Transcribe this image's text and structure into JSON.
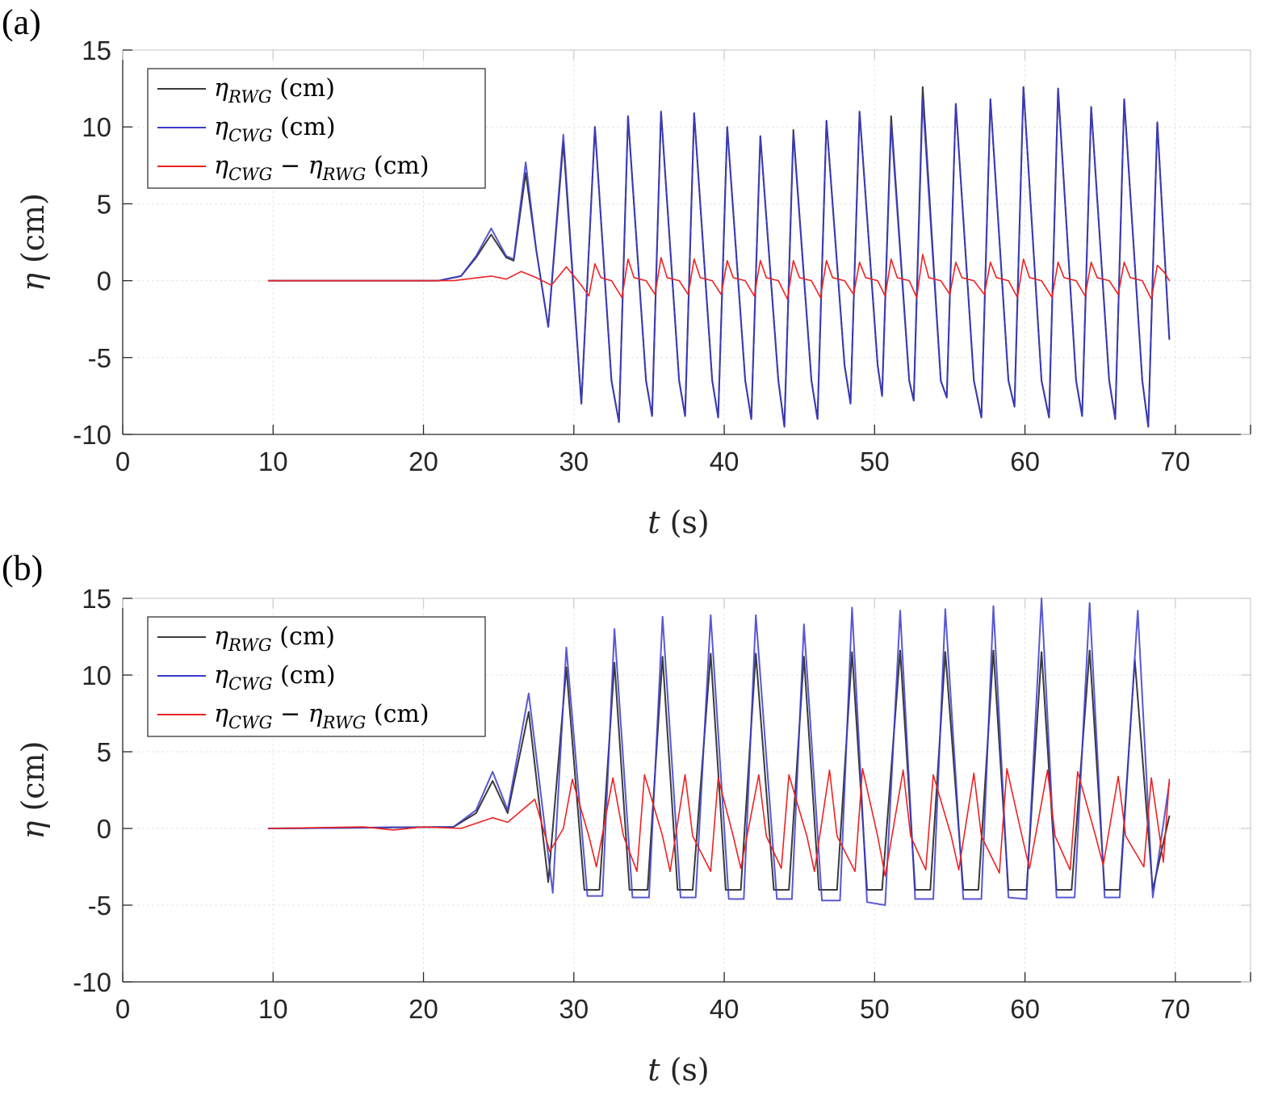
{
  "chart_data": [
    {
      "panel_label": "(a)",
      "type": "line",
      "xlabel_var": "t",
      "xlabel_unit": "(s)",
      "ylabel_var": "η",
      "ylabel_unit": "(cm)",
      "xlim": [
        0,
        75
      ],
      "ylim": [
        -10,
        15
      ],
      "xticks": [
        0,
        10,
        20,
        30,
        40,
        50,
        60,
        70
      ],
      "yticks": [
        15,
        10,
        5,
        0,
        -5,
        -10
      ],
      "xtick_labels": [
        "0",
        "10",
        "20",
        "30",
        "40",
        "50",
        "60",
        "70"
      ],
      "ytick_labels": [
        "15",
        "10",
        "5",
        "0",
        "-5",
        "-10"
      ],
      "grid": true,
      "legend_position": "top-left",
      "legend": [
        {
          "pre": "η",
          "sub": "RWG",
          "mid": "",
          "sub2": "",
          "unit": " (cm)"
        },
        {
          "pre": "η",
          "sub": "CWG",
          "mid": "",
          "sub2": "",
          "unit": " (cm)"
        },
        {
          "pre": "η",
          "sub": "CWG",
          "mid": " − η",
          "sub2": "RWG",
          "unit": " (cm)"
        }
      ],
      "wave_period": 2.16,
      "crest_times": [
        24.5,
        26.8,
        29.3,
        31.4,
        33.6,
        35.8,
        38.0,
        40.2,
        42.4,
        44.6,
        46.8,
        49.0,
        51.1,
        53.2,
        55.4,
        57.7,
        59.9,
        62.2,
        64.4,
        66.6,
        68.8
      ],
      "series": [
        {
          "name": "η_RWG (cm)",
          "color": "#3a3a3a",
          "x": [
            9.7,
            21.0,
            22.5,
            23.5,
            24.5,
            25.5,
            26.0,
            26.8,
            27.5,
            28.3,
            29.3,
            30.5,
            31.4,
            32.5,
            33.0,
            33.6,
            34.8,
            35.2,
            35.8,
            37.0,
            37.4,
            38.0,
            39.2,
            39.6,
            40.2,
            41.4,
            41.8,
            42.4,
            43.6,
            44.0,
            44.6,
            45.8,
            46.2,
            46.8,
            48.0,
            48.4,
            49.0,
            50.2,
            50.5,
            51.1,
            52.3,
            52.6,
            53.2,
            54.4,
            54.8,
            55.4,
            56.6,
            57.1,
            57.7,
            58.9,
            59.3,
            59.9,
            61.1,
            61.6,
            62.2,
            63.4,
            63.8,
            64.4,
            65.6,
            66.0,
            66.6,
            67.8,
            68.2,
            68.8,
            69.6
          ],
          "y": [
            0,
            0,
            0.3,
            1.5,
            3.0,
            1.5,
            1.3,
            7.0,
            2.0,
            -3.0,
            9.0,
            -8.0,
            10.0,
            -6.5,
            -9.2,
            10.7,
            -6.5,
            -8.8,
            11.0,
            -6.5,
            -8.8,
            10.9,
            -6.5,
            -8.9,
            10.0,
            -6.5,
            -9.0,
            9.4,
            -6.5,
            -9.5,
            9.8,
            -6.5,
            -9.0,
            10.4,
            -5.5,
            -8.0,
            11.0,
            -5.5,
            -7.5,
            10.7,
            -6.5,
            -7.8,
            12.6,
            -6.5,
            -7.6,
            11.5,
            -6.5,
            -8.9,
            11.8,
            -6.5,
            -8.2,
            12.6,
            -6.5,
            -8.9,
            12.5,
            -6.5,
            -8.8,
            11.3,
            -6.5,
            -9.0,
            11.8,
            -6.5,
            -9.5,
            10.3,
            -3.8
          ]
        },
        {
          "name": "η_CWG (cm)",
          "color": "#3b3bcc",
          "x": [
            9.7,
            21.0,
            22.5,
            23.5,
            24.5,
            25.5,
            26.0,
            26.8,
            27.5,
            28.3,
            29.3,
            30.5,
            31.4,
            32.5,
            33.0,
            33.6,
            34.8,
            35.2,
            35.8,
            37.0,
            37.4,
            38.0,
            39.2,
            39.6,
            40.2,
            41.4,
            41.8,
            42.4,
            43.6,
            44.0,
            44.6,
            45.8,
            46.2,
            46.8,
            48.0,
            48.4,
            49.0,
            50.2,
            50.5,
            51.1,
            52.3,
            52.6,
            53.2,
            54.4,
            54.8,
            55.4,
            56.6,
            57.1,
            57.7,
            58.9,
            59.3,
            59.9,
            61.1,
            61.6,
            62.2,
            63.4,
            63.8,
            64.4,
            65.6,
            66.0,
            66.6,
            67.8,
            68.2,
            68.8,
            69.6
          ],
          "y": [
            0,
            0,
            0.3,
            1.6,
            3.4,
            1.6,
            1.4,
            7.7,
            2.0,
            -3.0,
            9.5,
            -8.0,
            10.0,
            -6.5,
            -9.2,
            10.7,
            -6.5,
            -8.8,
            11.0,
            -6.5,
            -8.8,
            10.9,
            -6.5,
            -8.9,
            10.0,
            -6.5,
            -9.0,
            9.4,
            -6.5,
            -9.5,
            9.6,
            -6.5,
            -9.0,
            10.4,
            -5.5,
            -8.0,
            11.0,
            -5.5,
            -7.5,
            10.2,
            -6.5,
            -7.8,
            11.8,
            -6.5,
            -7.6,
            11.5,
            -6.5,
            -8.9,
            11.8,
            -6.5,
            -8.2,
            12.6,
            -6.5,
            -8.9,
            12.5,
            -6.5,
            -8.8,
            11.3,
            -6.5,
            -9.0,
            11.8,
            -6.5,
            -9.5,
            10.3,
            -3.8
          ]
        },
        {
          "name": "η_CWG − η_RWG (cm)",
          "color": "#ee2222",
          "x": [
            9.7,
            22.0,
            24.5,
            25.5,
            26.5,
            27.5,
            28.5,
            29.5,
            30.5,
            31.0,
            31.4,
            31.8,
            32.5,
            33.2,
            33.6,
            34.0,
            34.8,
            35.4,
            35.8,
            36.2,
            37.0,
            37.6,
            38.0,
            38.4,
            39.2,
            39.8,
            40.2,
            40.6,
            41.4,
            42.0,
            42.4,
            42.8,
            43.6,
            44.2,
            44.6,
            45.0,
            45.8,
            46.4,
            46.8,
            47.2,
            48.0,
            48.6,
            49.0,
            49.4,
            50.2,
            50.7,
            51.1,
            51.5,
            52.3,
            52.8,
            53.2,
            53.6,
            54.4,
            55.0,
            55.4,
            55.8,
            56.6,
            57.3,
            57.7,
            58.1,
            58.9,
            59.5,
            59.9,
            60.3,
            61.1,
            61.8,
            62.2,
            62.6,
            63.4,
            64.0,
            64.4,
            64.8,
            65.6,
            66.2,
            66.6,
            67.0,
            67.8,
            68.4,
            68.8,
            69.3,
            69.6
          ],
          "y": [
            0,
            0,
            0.3,
            0.1,
            0.6,
            0.2,
            -0.3,
            0.9,
            -0.3,
            -1.0,
            1.1,
            0.2,
            0.0,
            -1.1,
            1.4,
            0.2,
            0.0,
            -0.9,
            1.5,
            0.2,
            0.0,
            -0.9,
            1.4,
            0.2,
            0.0,
            -0.9,
            1.3,
            0.2,
            0.0,
            -1.0,
            1.3,
            0.2,
            0.0,
            -1.2,
            1.3,
            0.2,
            0.0,
            -1.1,
            1.3,
            0.2,
            0.0,
            -0.9,
            1.2,
            0.2,
            0.0,
            -1.0,
            1.4,
            0.2,
            0.0,
            -1.1,
            1.7,
            0.2,
            0.0,
            -0.9,
            1.2,
            0.2,
            0.0,
            -0.9,
            1.2,
            0.2,
            0.0,
            -1.1,
            1.4,
            0.2,
            0.0,
            -1.1,
            1.2,
            0.2,
            0.0,
            -1.0,
            1.2,
            0.2,
            0.0,
            -0.9,
            1.2,
            0.2,
            0.0,
            -1.2,
            1.0,
            0.5,
            0.0
          ]
        }
      ]
    },
    {
      "panel_label": "(b)",
      "type": "line",
      "xlabel_var": "t",
      "xlabel_unit": "(s)",
      "ylabel_var": "η",
      "ylabel_unit": "(cm)",
      "xlim": [
        0,
        75
      ],
      "ylim": [
        -10,
        15
      ],
      "xticks": [
        0,
        10,
        20,
        30,
        40,
        50,
        60,
        70
      ],
      "yticks": [
        15,
        10,
        5,
        0,
        -5,
        -10
      ],
      "xtick_labels": [
        "0",
        "10",
        "20",
        "30",
        "40",
        "50",
        "60",
        "70"
      ],
      "ytick_labels": [
        "15",
        "10",
        "5",
        "0",
        "-5",
        "-10"
      ],
      "grid": true,
      "legend_position": "top-left",
      "legend": [
        {
          "pre": "η",
          "sub": "RWG",
          "mid": "",
          "sub2": "",
          "unit": " (cm)"
        },
        {
          "pre": "η",
          "sub": "CWG",
          "mid": "",
          "sub2": "",
          "unit": " (cm)"
        },
        {
          "pre": "η",
          "sub": "CWG",
          "mid": " − η",
          "sub2": "RWG",
          "unit": " (cm)"
        }
      ],
      "series": [
        {
          "name": "η_RWG (cm)",
          "color": "#3a3a3a",
          "x": [
            9.7,
            22.0,
            23.5,
            24.6,
            25.6,
            27.0,
            28.3,
            29.5,
            30.7,
            31.7,
            32.7,
            33.7,
            34.9,
            35.9,
            36.9,
            37.9,
            39.1,
            40.1,
            41.1,
            42.1,
            43.3,
            44.3,
            45.3,
            46.3,
            47.5,
            48.5,
            49.5,
            50.5,
            51.7,
            52.7,
            53.7,
            54.7,
            55.9,
            56.9,
            57.9,
            58.9,
            60.1,
            61.1,
            62.1,
            63.1,
            64.3,
            65.3,
            66.3,
            67.3,
            68.5,
            69.6
          ],
          "y": [
            0,
            0.1,
            1.0,
            3.1,
            1.0,
            7.6,
            -3.5,
            10.5,
            -4.0,
            -4.0,
            10.8,
            -4.0,
            -4.0,
            11.2,
            -4.0,
            -4.0,
            11.4,
            -4.0,
            -4.0,
            11.4,
            -4.0,
            -4.0,
            11.2,
            -4.0,
            -4.0,
            11.5,
            -4.0,
            -4.0,
            11.6,
            -4.0,
            -4.0,
            11.5,
            -4.0,
            -4.0,
            11.6,
            -4.0,
            -4.0,
            11.5,
            -4.0,
            -4.0,
            11.6,
            -4.0,
            -4.0,
            11.0,
            -4.0,
            0.8
          ]
        },
        {
          "name": "η_CWG (cm)",
          "color": "#3b3bcc",
          "x": [
            9.7,
            22.0,
            23.5,
            24.6,
            25.6,
            27.0,
            28.6,
            29.5,
            30.9,
            31.9,
            32.7,
            33.9,
            35.0,
            35.9,
            37.1,
            38.1,
            39.1,
            40.3,
            41.3,
            42.1,
            43.5,
            44.5,
            45.3,
            46.5,
            47.7,
            48.5,
            49.5,
            50.7,
            51.7,
            52.7,
            53.9,
            54.7,
            55.9,
            57.1,
            57.9,
            58.9,
            60.1,
            61.1,
            62.1,
            63.3,
            64.3,
            65.3,
            66.3,
            67.5,
            68.5,
            69.6
          ],
          "y": [
            0,
            0.1,
            1.2,
            3.7,
            1.2,
            8.8,
            -4.2,
            11.8,
            -4.4,
            -4.4,
            13.0,
            -4.5,
            -4.5,
            13.8,
            -4.5,
            -4.5,
            13.9,
            -4.6,
            -4.6,
            13.9,
            -4.6,
            -4.6,
            13.3,
            -4.7,
            -4.7,
            14.4,
            -4.8,
            -5.0,
            14.2,
            -4.6,
            -4.6,
            14.3,
            -4.6,
            -4.6,
            14.5,
            -4.5,
            -4.6,
            15.0,
            -4.5,
            -4.5,
            14.7,
            -4.5,
            -4.5,
            14.2,
            -4.5,
            3.0
          ]
        },
        {
          "name": "η_CWG − η_RWG (cm)",
          "color": "#ee2222",
          "x": [
            9.7,
            16.0,
            18.0,
            20.0,
            22.5,
            24.6,
            25.6,
            27.4,
            28.4,
            29.3,
            29.9,
            31.0,
            31.5,
            32.6,
            33.3,
            34.2,
            34.7,
            35.9,
            36.4,
            37.4,
            37.9,
            39.1,
            39.6,
            40.6,
            41.1,
            42.3,
            42.8,
            43.8,
            44.3,
            45.5,
            46.0,
            47.0,
            47.5,
            48.7,
            49.2,
            50.2,
            50.7,
            51.9,
            52.4,
            53.4,
            53.9,
            55.1,
            55.6,
            56.6,
            57.1,
            58.3,
            58.8,
            59.8,
            60.3,
            61.5,
            62.0,
            63.0,
            63.5,
            64.7,
            65.2,
            66.2,
            66.7,
            67.9,
            68.4,
            69.2,
            69.6
          ],
          "y": [
            0,
            0.1,
            -0.1,
            0.1,
            0,
            0.7,
            0.4,
            1.9,
            -1.5,
            0.0,
            3.2,
            -0.5,
            -2.5,
            3.3,
            -0.5,
            -2.8,
            3.5,
            -0.5,
            -2.8,
            3.5,
            -0.5,
            -2.8,
            3.3,
            -0.5,
            -2.6,
            3.5,
            -0.5,
            -2.6,
            3.5,
            -0.5,
            -2.8,
            3.8,
            -0.5,
            -2.8,
            3.9,
            -0.5,
            -3.1,
            3.8,
            -0.5,
            -2.7,
            3.5,
            -0.5,
            -2.7,
            3.6,
            -0.5,
            -2.9,
            3.9,
            -0.5,
            -2.6,
            3.8,
            -0.5,
            -2.7,
            3.7,
            -0.5,
            -2.4,
            3.4,
            -0.5,
            -2.5,
            3.3,
            -2.2,
            3.2
          ]
        }
      ]
    }
  ]
}
